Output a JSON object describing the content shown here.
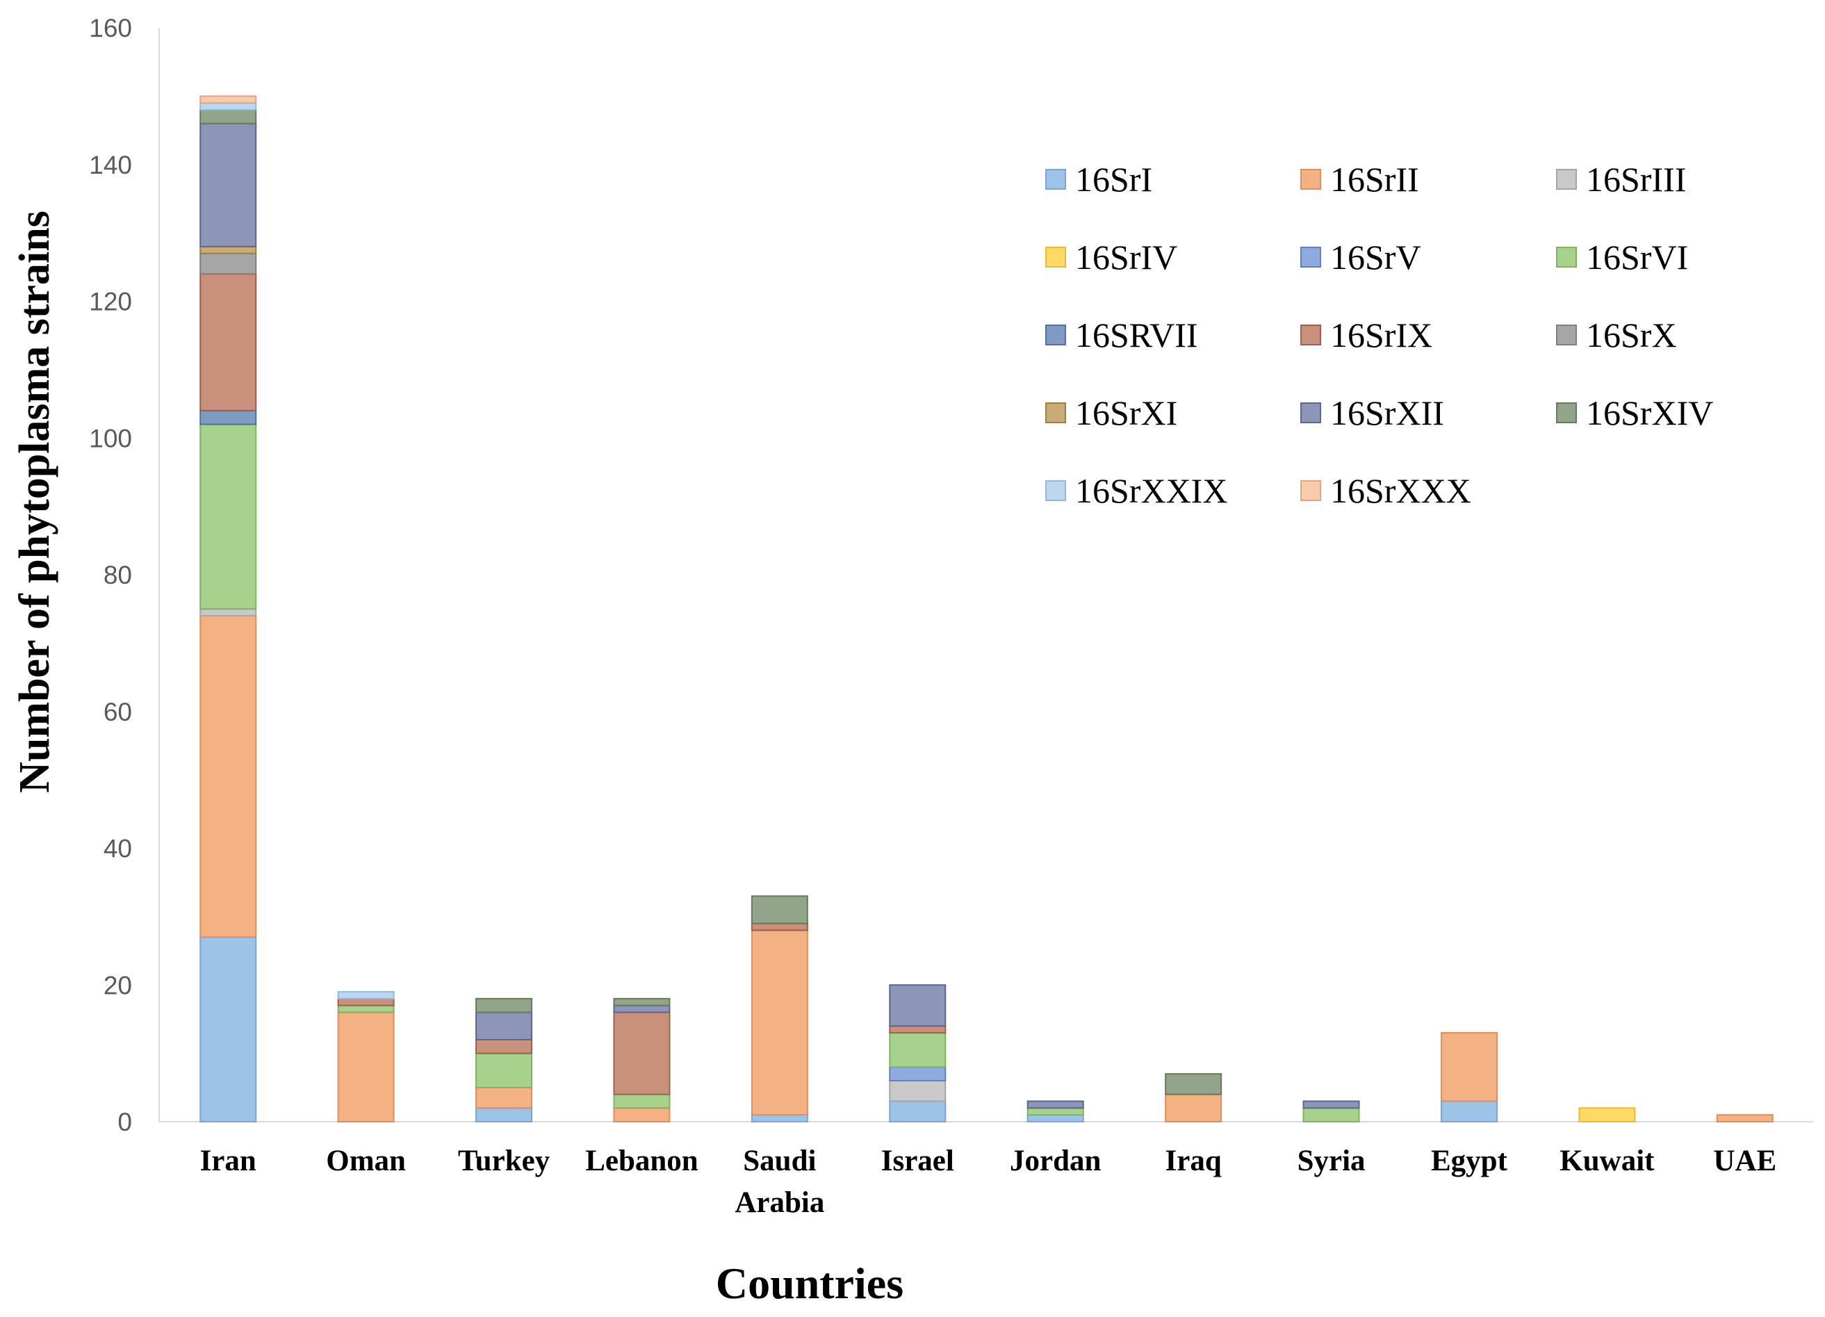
{
  "chart_data": {
    "type": "bar",
    "stacked": true,
    "xlabel": "Countries",
    "ylabel": "Number of phytoplasma strains",
    "ylim": [
      0,
      160
    ],
    "yticks": [
      0,
      20,
      40,
      60,
      80,
      100,
      120,
      140,
      160
    ],
    "grid": false,
    "legend_position": "top-right",
    "categories": [
      "Iran",
      "Oman",
      "Turkey",
      "Lebanon",
      "Saudi Arabia",
      "Israel",
      "Jordan",
      "Iraq",
      "Syria",
      "Egypt",
      "Kuwait",
      "UAE"
    ],
    "category_lines": [
      [
        "Iran"
      ],
      [
        "Oman"
      ],
      [
        "Turkey"
      ],
      [
        "Lebanon"
      ],
      [
        "Saudi",
        "Arabia"
      ],
      [
        "Israel"
      ],
      [
        "Jordan"
      ],
      [
        "Iraq"
      ],
      [
        "Syria"
      ],
      [
        "Egypt"
      ],
      [
        "Kuwait"
      ],
      [
        "UAE"
      ]
    ],
    "series": [
      {
        "name": "16SrI",
        "color": "#9dc3e6",
        "stroke": "#7aa5d4",
        "values": [
          27,
          0,
          2,
          0,
          1,
          3,
          1,
          0,
          0,
          3,
          0,
          0
        ]
      },
      {
        "name": "16SrII",
        "color": "#f4b183",
        "stroke": "#e08e5e",
        "values": [
          47,
          16,
          3,
          2,
          27,
          0,
          0,
          4,
          0,
          10,
          0,
          1
        ]
      },
      {
        "name": "16SrIII",
        "color": "#c9c9c9",
        "stroke": "#a5a5a5",
        "values": [
          1,
          0,
          0,
          0,
          0,
          3,
          0,
          0,
          0,
          0,
          0,
          0
        ]
      },
      {
        "name": "16SrIV",
        "color": "#ffd966",
        "stroke": "#e8b93a",
        "values": [
          0,
          0,
          0,
          0,
          0,
          0,
          0,
          0,
          0,
          0,
          2,
          0
        ]
      },
      {
        "name": "16SrV",
        "color": "#8faadc",
        "stroke": "#5f7fc0",
        "values": [
          0,
          0,
          0,
          0,
          0,
          2,
          0,
          0,
          0,
          0,
          0,
          0
        ]
      },
      {
        "name": "16SrVI",
        "color": "#a9d18e",
        "stroke": "#80b35f",
        "values": [
          27,
          1,
          5,
          2,
          0,
          5,
          1,
          0,
          2,
          0,
          0,
          0
        ]
      },
      {
        "name": "16SRVII",
        "color": "#7f9bc4",
        "stroke": "#56709c",
        "values": [
          2,
          0,
          0,
          0,
          0,
          0,
          0,
          0,
          0,
          0,
          0,
          0
        ]
      },
      {
        "name": "16SrIX",
        "color": "#c9907c",
        "stroke": "#9e5f4c",
        "values": [
          20,
          1,
          2,
          12,
          1,
          1,
          0,
          0,
          0,
          0,
          0,
          0
        ]
      },
      {
        "name": "16SrX",
        "color": "#a6a6a6",
        "stroke": "#7f7f7f",
        "values": [
          3,
          0,
          0,
          0,
          0,
          0,
          0,
          0,
          0,
          0,
          0,
          0
        ]
      },
      {
        "name": "16SrXI",
        "color": "#c9ab78",
        "stroke": "#9e7f48",
        "values": [
          1,
          0,
          0,
          0,
          0,
          0,
          0,
          0,
          0,
          0,
          0,
          0
        ]
      },
      {
        "name": "16SrXII",
        "color": "#8e96b8",
        "stroke": "#5c6690",
        "values": [
          18,
          0,
          4,
          1,
          0,
          6,
          1,
          0,
          1,
          0,
          0,
          0
        ]
      },
      {
        "name": "16SrXIV",
        "color": "#92a48a",
        "stroke": "#677a5e",
        "values": [
          2,
          0,
          2,
          1,
          4,
          0,
          0,
          3,
          0,
          0,
          0,
          0
        ]
      },
      {
        "name": "16SrXXIX",
        "color": "#bdd7ee",
        "stroke": "#93b8dd",
        "values": [
          1,
          1,
          0,
          0,
          0,
          0,
          0,
          0,
          0,
          0,
          0,
          0
        ]
      },
      {
        "name": "16SrXXX",
        "color": "#f8cbad",
        "stroke": "#e0a585",
        "values": [
          1,
          0,
          0,
          0,
          0,
          0,
          0,
          0,
          0,
          0,
          0,
          0
        ]
      }
    ]
  }
}
